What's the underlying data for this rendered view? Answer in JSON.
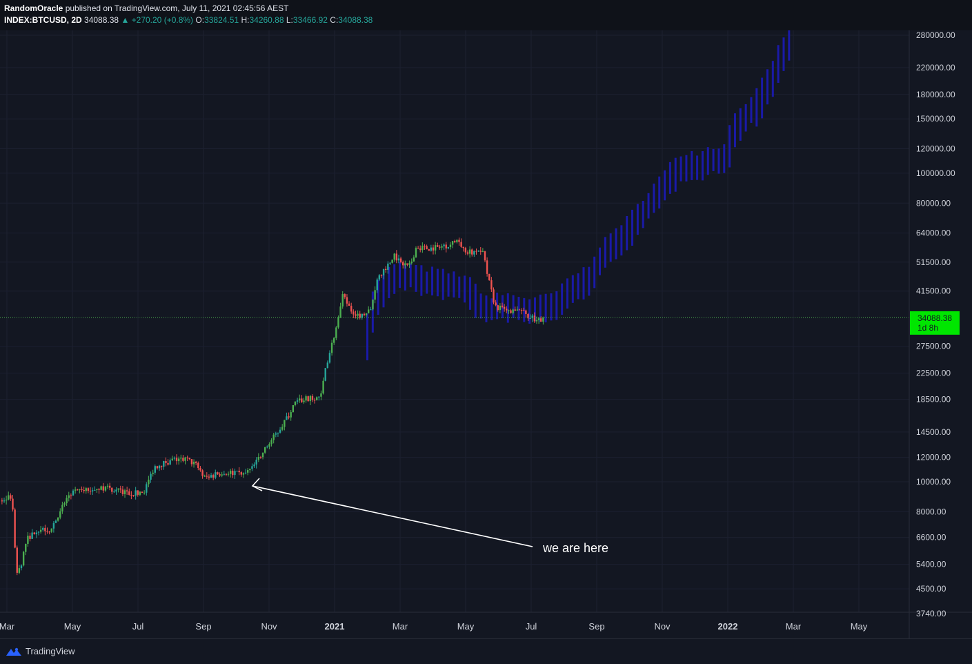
{
  "header": {
    "author": "RandomOracle",
    "published": "published on TradingView.com, July 11, 2021 02:45:56 AEST",
    "symbol": "INDEX:BTCUSD, 2D",
    "last": "34088.38",
    "change": "▲ +270.20 (+0.8%)",
    "open_label": "O:",
    "open": "33824.51",
    "high_label": "H:",
    "high": "34260.88",
    "low_label": "L:",
    "low": "33466.92",
    "close_label": "C:",
    "close": "34088.38"
  },
  "price_tag": {
    "price": "34088.38",
    "countdown": "1d 8h"
  },
  "annotation": {
    "text": "we are here"
  },
  "footer": {
    "brand": "TradingView"
  },
  "colors": {
    "up": "#26a69a",
    "up_bright": "#4caf50",
    "down": "#ef5350",
    "projection": "#1a1aa8",
    "price_line": "#4caf50",
    "background": "#131722"
  },
  "chart_data": {
    "type": "candlestick",
    "scale": "log",
    "ylim": [
      3740,
      290000
    ],
    "y_ticks": [
      "280000.00",
      "220000.00",
      "180000.00",
      "150000.00",
      "120000.00",
      "100000.00",
      "80000.00",
      "64000.00",
      "51500.00",
      "41500.00",
      "27500.00",
      "22500.00",
      "18500.00",
      "14500.00",
      "12000.00",
      "10000.00",
      "8000.00",
      "6600.00",
      "5400.00",
      "4500.00",
      "3740.00"
    ],
    "x_ticks": [
      {
        "label": "Mar",
        "t": 0.0
      },
      {
        "label": "May",
        "t": 2.0
      },
      {
        "label": "Jul",
        "t": 4.0
      },
      {
        "label": "Sep",
        "t": 6.0
      },
      {
        "label": "Nov",
        "t": 8.0
      },
      {
        "label": "2021",
        "t": 10.0,
        "bold": true
      },
      {
        "label": "Mar",
        "t": 12.0
      },
      {
        "label": "May",
        "t": 14.0
      },
      {
        "label": "Jul",
        "t": 16.0
      },
      {
        "label": "Sep",
        "t": 18.0
      },
      {
        "label": "Nov",
        "t": 20.0
      },
      {
        "label": "2022",
        "t": 22.0,
        "bold": true
      },
      {
        "label": "Mar",
        "t": 24.0
      },
      {
        "label": "May",
        "t": 26.0
      }
    ],
    "last_price": 34088.38,
    "actual_path": [
      [
        -0.15,
        8700
      ],
      [
        0.15,
        9000
      ],
      [
        0.3,
        5000
      ],
      [
        0.45,
        5500
      ],
      [
        0.6,
        6500
      ],
      [
        0.9,
        7000
      ],
      [
        1.3,
        7000
      ],
      [
        1.6,
        7800
      ],
      [
        1.8,
        8800
      ],
      [
        2.1,
        9300
      ],
      [
        2.5,
        9400
      ],
      [
        2.9,
        9600
      ],
      [
        3.3,
        9400
      ],
      [
        3.7,
        9200
      ],
      [
        4.0,
        9200
      ],
      [
        4.2,
        9400
      ],
      [
        4.5,
        11200
      ],
      [
        4.8,
        11500
      ],
      [
        5.1,
        11800
      ],
      [
        5.5,
        11800
      ],
      [
        5.8,
        11300
      ],
      [
        6.0,
        10300
      ],
      [
        6.3,
        10500
      ],
      [
        6.6,
        10800
      ],
      [
        6.9,
        10700
      ],
      [
        7.2,
        10500
      ],
      [
        7.5,
        11100
      ],
      [
        7.7,
        12000
      ],
      [
        8.0,
        13300
      ],
      [
        8.3,
        14700
      ],
      [
        8.6,
        16500
      ],
      [
        8.8,
        18000
      ],
      [
        9.0,
        18400
      ],
      [
        9.3,
        18700
      ],
      [
        9.6,
        19000
      ],
      [
        9.7,
        23000
      ],
      [
        9.9,
        27500
      ],
      [
        10.1,
        33000
      ],
      [
        10.25,
        40000
      ],
      [
        10.5,
        36000
      ],
      [
        10.8,
        34500
      ],
      [
        11.1,
        36000
      ],
      [
        11.3,
        46000
      ],
      [
        11.6,
        50000
      ],
      [
        11.8,
        54000
      ],
      [
        12.1,
        51000
      ],
      [
        12.3,
        50000
      ],
      [
        12.5,
        58000
      ],
      [
        12.8,
        57000
      ],
      [
        13.1,
        57500
      ],
      [
        13.5,
        58500
      ],
      [
        13.8,
        61000
      ],
      [
        14.0,
        55000
      ],
      [
        14.3,
        56000
      ],
      [
        14.5,
        57000
      ],
      [
        14.7,
        45000
      ],
      [
        14.9,
        37000
      ],
      [
        15.2,
        36000
      ],
      [
        15.5,
        35500
      ],
      [
        15.7,
        36500
      ],
      [
        15.9,
        34500
      ],
      [
        16.2,
        33500
      ],
      [
        16.4,
        34088
      ]
    ],
    "projection_path": [
      [
        11.0,
        28000
      ],
      [
        11.3,
        38000
      ],
      [
        11.6,
        43000
      ],
      [
        11.9,
        46000
      ],
      [
        12.2,
        47000
      ],
      [
        12.5,
        46000
      ],
      [
        12.8,
        45000
      ],
      [
        13.1,
        45000
      ],
      [
        13.4,
        44000
      ],
      [
        13.7,
        43500
      ],
      [
        14.0,
        43000
      ],
      [
        14.3,
        40000
      ],
      [
        14.6,
        37000
      ],
      [
        14.9,
        36000
      ],
      [
        15.2,
        37500
      ],
      [
        15.5,
        37000
      ],
      [
        15.8,
        36500
      ],
      [
        16.1,
        36000
      ],
      [
        16.4,
        36500
      ],
      [
        16.7,
        37000
      ],
      [
        17.0,
        38500
      ],
      [
        17.3,
        42000
      ],
      [
        17.6,
        44000
      ],
      [
        17.9,
        46000
      ],
      [
        18.2,
        53000
      ],
      [
        18.5,
        57000
      ],
      [
        18.8,
        62000
      ],
      [
        19.1,
        66000
      ],
      [
        19.4,
        72000
      ],
      [
        19.7,
        80000
      ],
      [
        20.0,
        87000
      ],
      [
        20.3,
        95000
      ],
      [
        20.6,
        105000
      ],
      [
        20.9,
        108000
      ],
      [
        21.2,
        107000
      ],
      [
        21.5,
        112000
      ],
      [
        21.8,
        110000
      ],
      [
        22.1,
        118000
      ],
      [
        22.3,
        140000
      ],
      [
        22.6,
        155000
      ],
      [
        22.9,
        160000
      ],
      [
        23.1,
        175000
      ],
      [
        23.4,
        200000
      ],
      [
        23.7,
        235000
      ],
      [
        24.0,
        275000
      ]
    ]
  }
}
